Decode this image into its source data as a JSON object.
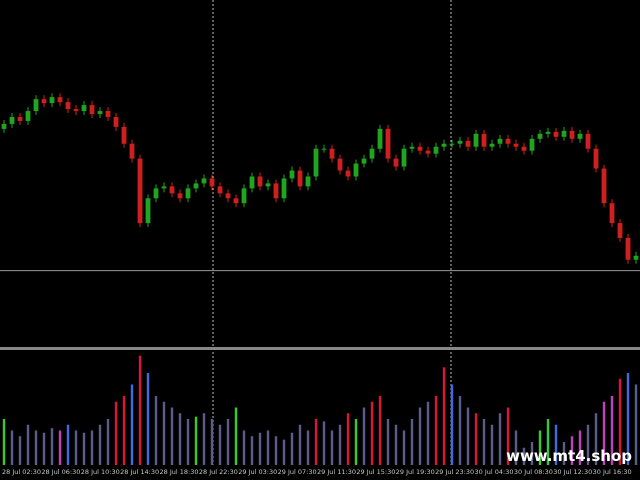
{
  "chart_data": [
    {
      "type": "candlestick",
      "up_color": "#1fa51f",
      "down_color": "#d01f1f",
      "ylim": [
        0,
        350
      ],
      "price_line": 77,
      "open": [
        220,
        225,
        232,
        228,
        238,
        250,
        246,
        252,
        247,
        240,
        238,
        244,
        235,
        238,
        232,
        222,
        205,
        190,
        125,
        150,
        160,
        162,
        155,
        150,
        160,
        165,
        170,
        162,
        155,
        150,
        145,
        160,
        172,
        162,
        165,
        150,
        170,
        178,
        162,
        172,
        200,
        200,
        190,
        178,
        172,
        185,
        190,
        200,
        220,
        190,
        182,
        200,
        202,
        198,
        195,
        202,
        205,
        205,
        208,
        202,
        215,
        202,
        205,
        210,
        205,
        202,
        198,
        210,
        215,
        217,
        212,
        218,
        210,
        215,
        200,
        180,
        145,
        125,
        110,
        88
      ],
      "high": [
        229,
        236,
        236,
        242,
        254,
        254,
        256,
        256,
        251,
        244,
        248,
        248,
        242,
        242,
        236,
        226,
        209,
        194,
        154,
        164,
        166,
        166,
        159,
        164,
        169,
        174,
        174,
        166,
        159,
        154,
        164,
        176,
        176,
        169,
        169,
        174,
        182,
        182,
        176,
        204,
        204,
        204,
        194,
        182,
        189,
        194,
        204,
        224,
        224,
        194,
        204,
        206,
        206,
        202,
        206,
        209,
        209,
        212,
        212,
        219,
        219,
        209,
        214,
        214,
        209,
        206,
        214,
        219,
        221,
        221,
        222,
        222,
        219,
        219,
        204,
        184,
        149,
        129,
        114,
        96
      ],
      "low": [
        216,
        221,
        224,
        224,
        234,
        242,
        242,
        243,
        236,
        234,
        234,
        231,
        231,
        228,
        218,
        201,
        186,
        121,
        121,
        146,
        156,
        151,
        146,
        146,
        156,
        161,
        158,
        151,
        146,
        141,
        141,
        156,
        158,
        158,
        146,
        146,
        166,
        158,
        158,
        168,
        196,
        186,
        174,
        168,
        168,
        181,
        186,
        196,
        186,
        178,
        178,
        196,
        194,
        191,
        191,
        198,
        201,
        201,
        198,
        198,
        198,
        198,
        201,
        201,
        198,
        194,
        194,
        206,
        211,
        208,
        208,
        206,
        206,
        196,
        176,
        141,
        121,
        106,
        84,
        84
      ],
      "close": [
        225,
        232,
        228,
        238,
        250,
        246,
        252,
        247,
        240,
        238,
        244,
        235,
        238,
        232,
        222,
        205,
        190,
        125,
        150,
        160,
        162,
        155,
        150,
        160,
        165,
        170,
        162,
        155,
        150,
        145,
        160,
        172,
        162,
        165,
        150,
        170,
        178,
        162,
        172,
        200,
        200,
        190,
        178,
        172,
        185,
        190,
        200,
        220,
        190,
        182,
        200,
        202,
        198,
        195,
        202,
        205,
        205,
        208,
        202,
        215,
        202,
        205,
        210,
        205,
        202,
        198,
        210,
        215,
        217,
        212,
        218,
        210,
        215,
        200,
        180,
        145,
        125,
        110,
        88,
        92
      ]
    },
    {
      "type": "bar",
      "ylim": [
        0,
        100
      ],
      "values": [
        40,
        30,
        25,
        35,
        30,
        28,
        32,
        30,
        35,
        30,
        28,
        30,
        35,
        40,
        55,
        60,
        70,
        95,
        80,
        60,
        55,
        50,
        45,
        40,
        42,
        45,
        40,
        35,
        40,
        50,
        30,
        25,
        28,
        30,
        25,
        22,
        28,
        35,
        30,
        40,
        38,
        30,
        35,
        45,
        40,
        50,
        55,
        60,
        40,
        35,
        30,
        40,
        50,
        55,
        60,
        85,
        70,
        60,
        50,
        45,
        40,
        35,
        45,
        50,
        30,
        15,
        20,
        30,
        40,
        35,
        20,
        25,
        30,
        35,
        45,
        55,
        60,
        75,
        80,
        70
      ],
      "colors": [
        "#32cd32",
        "#5c5c8a",
        "#5c5c8a",
        "#5c5c8a",
        "#5c5c8a",
        "#5c5c8a",
        "#5c5c8a",
        "#c040c0",
        "#4169e1",
        "#5c5c8a",
        "#5c5c8a",
        "#5c5c8a",
        "#5c5c8a",
        "#5c5c8a",
        "#dc143c",
        "#dc143c",
        "#4169e1",
        "#dc143c",
        "#4169e1",
        "#5c5c8a",
        "#5c5c8a",
        "#5c5c8a",
        "#5c5c8a",
        "#5c5c8a",
        "#32cd32",
        "#5c5c8a",
        "#5c5c8a",
        "#5c5c8a",
        "#5c5c8a",
        "#32cd32",
        "#5c5c8a",
        "#5c5c8a",
        "#5c5c8a",
        "#5c5c8a",
        "#5c5c8a",
        "#5c5c8a",
        "#5c5c8a",
        "#5c5c8a",
        "#5c5c8a",
        "#dc143c",
        "#5c5c8a",
        "#5c5c8a",
        "#5c5c8a",
        "#dc143c",
        "#32cd32",
        "#5c5c8a",
        "#dc143c",
        "#dc143c",
        "#5c5c8a",
        "#5c5c8a",
        "#5c5c8a",
        "#5c5c8a",
        "#5c5c8a",
        "#5c5c8a",
        "#dc143c",
        "#dc143c",
        "#4169e1",
        "#5c5c8a",
        "#5c5c8a",
        "#dc143c",
        "#5c5c8a",
        "#5c5c8a",
        "#5c5c8a",
        "#dc143c",
        "#5c5c8a",
        "#5c5c8a",
        "#5c5c8a",
        "#32cd32",
        "#32cd32",
        "#4169e1",
        "#5c5c8a",
        "#c040c0",
        "#c040c0",
        "#5c5c8a",
        "#5c5c8a",
        "#c040c0",
        "#c040c0",
        "#dc143c",
        "#4169e1",
        "#5c5c8a"
      ]
    },
    {
      "type": "axis",
      "x": [
        "28 Jul 02:30",
        "28 Jul 06:30",
        "28 Jul 10:30",
        "28 Jul 14:30",
        "28 Jul 18:30",
        "28 Jul 22:30",
        "29 Jul 03:30",
        "29 Jul 07:30",
        "29 Jul 11:30",
        "29 Jul 15:30",
        "29 Jul 19:30",
        "29 Jul 23:30",
        "30 Jul 04:30",
        "30 Jul 08:30",
        "30 Jul 12:30",
        "30 Jul 16:30"
      ]
    }
  ],
  "watermark": "www.mt4.shop"
}
